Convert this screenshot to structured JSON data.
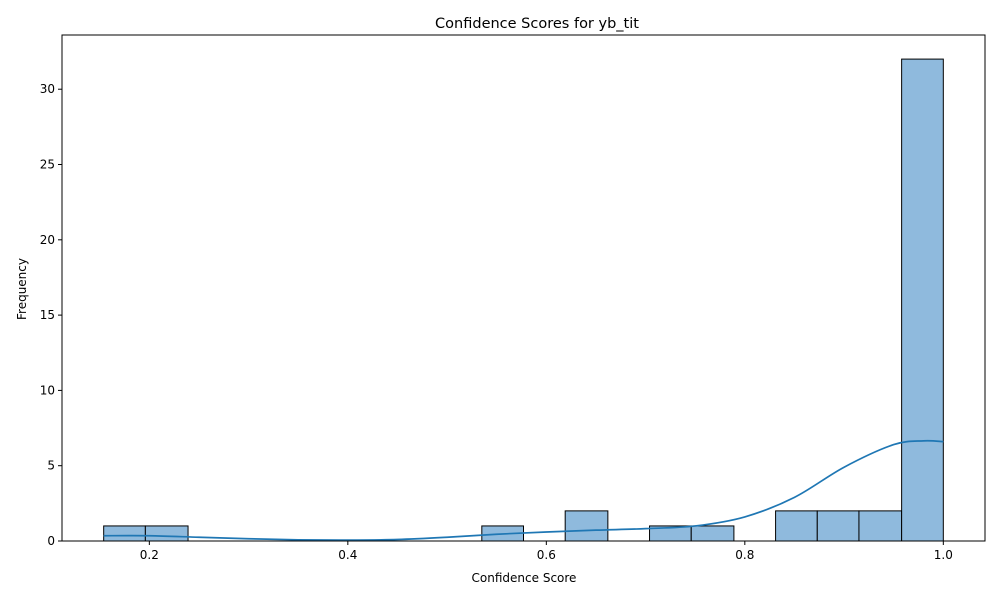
{
  "chart_data": {
    "type": "bar",
    "subtype": "histogram",
    "title": "Confidence Scores for yb_tit",
    "xlabel": "Confidence Score",
    "ylabel": "Frequency",
    "xlim": [
      0.112,
      1.042
    ],
    "ylim": [
      0,
      33.6
    ],
    "xticks": [
      0.2,
      0.4,
      0.6,
      0.8,
      1.0
    ],
    "xtick_labels": [
      "0.2",
      "0.4",
      "0.6",
      "0.8",
      "1.0"
    ],
    "yticks": [
      0,
      5,
      10,
      15,
      20,
      25,
      30
    ],
    "ytick_labels": [
      "0",
      "5",
      "10",
      "15",
      "20",
      "25",
      "30"
    ],
    "bins": [
      {
        "start": 0.154,
        "end": 0.196,
        "count": 1
      },
      {
        "start": 0.196,
        "end": 0.239,
        "count": 1
      },
      {
        "start": 0.239,
        "end": 0.281,
        "count": 0
      },
      {
        "start": 0.281,
        "end": 0.323,
        "count": 0
      },
      {
        "start": 0.323,
        "end": 0.366,
        "count": 0
      },
      {
        "start": 0.366,
        "end": 0.408,
        "count": 0
      },
      {
        "start": 0.408,
        "end": 0.45,
        "count": 0
      },
      {
        "start": 0.45,
        "end": 0.492,
        "count": 0
      },
      {
        "start": 0.492,
        "end": 0.535,
        "count": 0
      },
      {
        "start": 0.535,
        "end": 0.577,
        "count": 1
      },
      {
        "start": 0.577,
        "end": 0.619,
        "count": 0
      },
      {
        "start": 0.619,
        "end": 0.662,
        "count": 2
      },
      {
        "start": 0.662,
        "end": 0.704,
        "count": 0
      },
      {
        "start": 0.704,
        "end": 0.746,
        "count": 1
      },
      {
        "start": 0.746,
        "end": 0.789,
        "count": 1
      },
      {
        "start": 0.789,
        "end": 0.831,
        "count": 0
      },
      {
        "start": 0.831,
        "end": 0.873,
        "count": 2
      },
      {
        "start": 0.873,
        "end": 0.915,
        "count": 2
      },
      {
        "start": 0.915,
        "end": 0.958,
        "count": 2
      },
      {
        "start": 0.958,
        "end": 1.0,
        "count": 32
      }
    ],
    "kde": {
      "x": [
        0.154,
        0.2,
        0.25,
        0.3,
        0.35,
        0.4,
        0.45,
        0.5,
        0.55,
        0.6,
        0.65,
        0.7,
        0.75,
        0.8,
        0.85,
        0.9,
        0.95,
        0.98,
        1.0
      ],
      "y": [
        0.35,
        0.35,
        0.25,
        0.15,
        0.08,
        0.06,
        0.1,
        0.25,
        0.45,
        0.6,
        0.72,
        0.82,
        1.0,
        1.6,
        2.9,
        4.9,
        6.4,
        6.65,
        6.6
      ]
    },
    "colors": {
      "bar_fill": "#8fbadd",
      "bar_edge": "#000000",
      "kde_line": "#1f77b4"
    }
  }
}
